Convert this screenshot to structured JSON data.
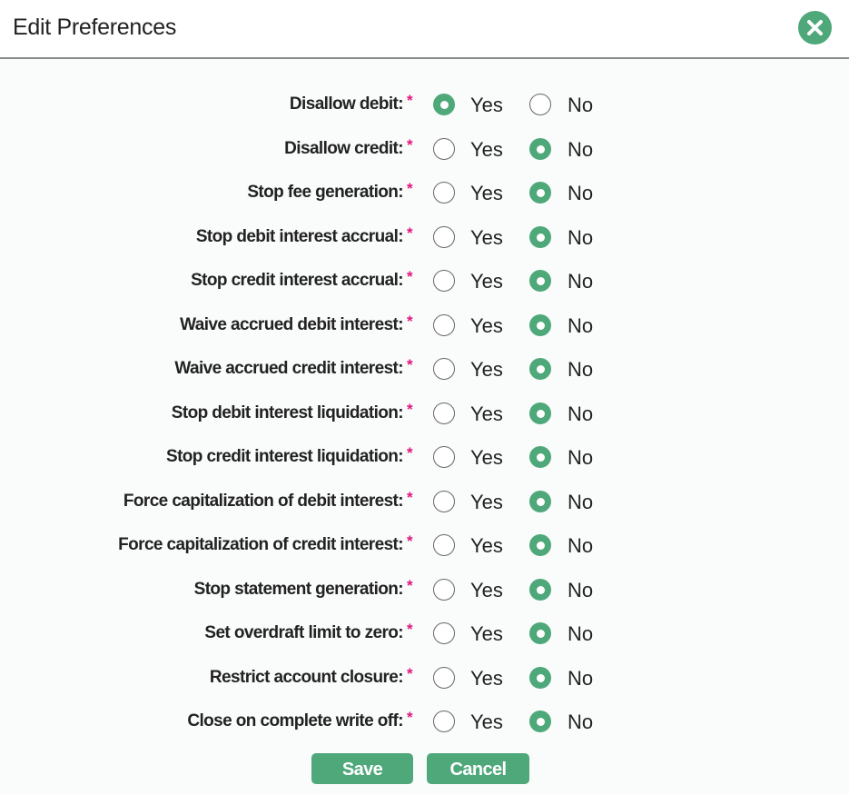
{
  "dialog": {
    "title": "Edit Preferences",
    "close_icon": "close-icon"
  },
  "accent_color": "#4ea87a",
  "required_marker": "*",
  "options": {
    "yes": "Yes",
    "no": "No"
  },
  "preferences": [
    {
      "label": "Disallow debit:",
      "value": "Yes"
    },
    {
      "label": "Disallow credit:",
      "value": "No"
    },
    {
      "label": "Stop fee generation:",
      "value": "No"
    },
    {
      "label": "Stop debit interest accrual:",
      "value": "No"
    },
    {
      "label": "Stop credit interest accrual:",
      "value": "No"
    },
    {
      "label": "Waive accrued debit interest:",
      "value": "No"
    },
    {
      "label": "Waive accrued credit interest:",
      "value": "No"
    },
    {
      "label": "Stop debit interest liquidation:",
      "value": "No"
    },
    {
      "label": "Stop credit interest liquidation:",
      "value": "No"
    },
    {
      "label": "Force capitalization of debit interest:",
      "value": "No"
    },
    {
      "label": "Force capitalization of credit interest:",
      "value": "No"
    },
    {
      "label": "Stop statement generation:",
      "value": "No"
    },
    {
      "label": "Set overdraft limit to zero:",
      "value": "No"
    },
    {
      "label": "Restrict account closure:",
      "value": "No"
    },
    {
      "label": "Close on complete write off:",
      "value": "No"
    }
  ],
  "buttons": {
    "save": "Save",
    "cancel": "Cancel"
  }
}
